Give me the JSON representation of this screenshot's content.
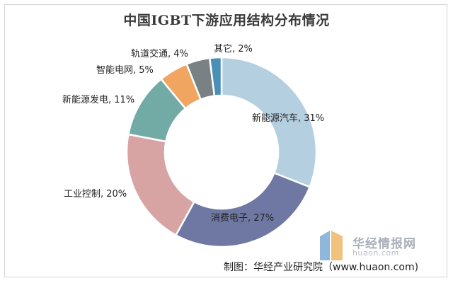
{
  "chart_data": {
    "type": "pie",
    "title": "中国IGBT下游应用结构分布情况",
    "slices": [
      {
        "label": "新能源汽车, 31%",
        "value": 31,
        "color": "#b4cfe0"
      },
      {
        "label": "消费电子, 27%",
        "value": 27,
        "color": "#6e78a3"
      },
      {
        "label": "工业控制, 20%",
        "value": 20,
        "color": "#d7a4a3"
      },
      {
        "label": "新能源发电, 11%",
        "value": 11,
        "color": "#72aaa6"
      },
      {
        "label": "智能电网, 5%",
        "value": 5,
        "color": "#f0a661"
      },
      {
        "label": "轨道交通, 4%",
        "value": 4,
        "color": "#7a8185"
      },
      {
        "label": "其它, 2%",
        "value": 2,
        "color": "#4a8fb8"
      }
    ]
  },
  "credit": "制图：华经产业研究院（www.huaon.com)",
  "watermark": {
    "brand": "华经情报网",
    "url": "huaon.com",
    "logo_colors": [
      "#8fb7d9",
      "#f1c27d"
    ]
  }
}
